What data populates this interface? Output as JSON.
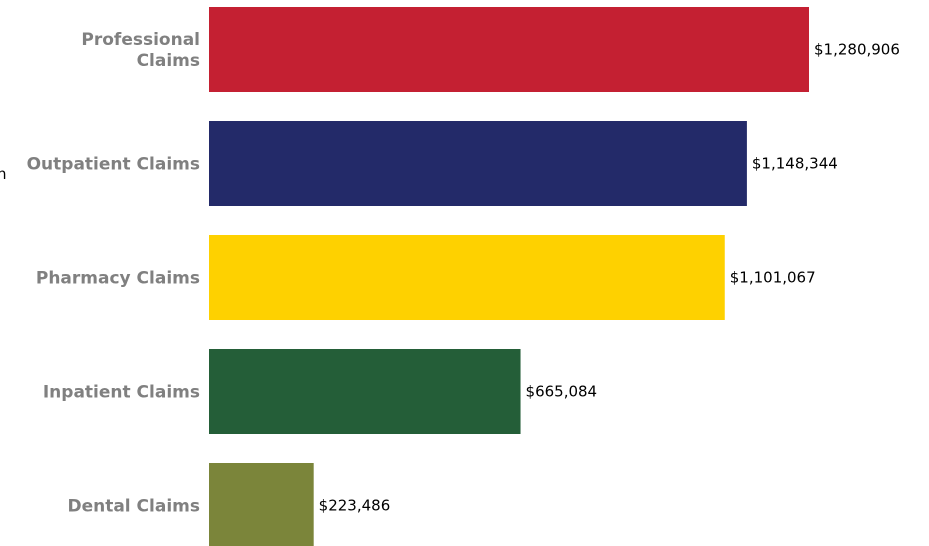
{
  "stray_text": "n",
  "chart_data": {
    "type": "bar",
    "orientation": "horizontal",
    "title": "",
    "xlabel": "",
    "ylabel": "",
    "categories": [
      [
        "Professional",
        "Claims"
      ],
      [
        "Outpatient Claims"
      ],
      [
        "Pharmacy Claims"
      ],
      [
        "Inpatient Claims"
      ],
      [
        "Dental Claims"
      ]
    ],
    "values": [
      1280906,
      1148344,
      1101067,
      665084,
      223486
    ],
    "value_labels": [
      "$1,280,906",
      "$1,148,344",
      "$1,101,067",
      "$665,084",
      "$223,486"
    ],
    "colors": [
      "#c42032",
      "#232a69",
      "#fed100",
      "#245e38",
      "#7b853a"
    ],
    "xlim": [
      0,
      1280906
    ],
    "grid": false,
    "legend": "none"
  }
}
